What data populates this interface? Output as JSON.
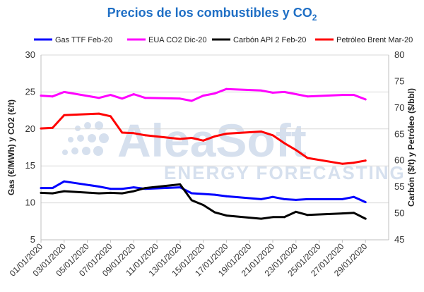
{
  "chart_data": {
    "type": "line",
    "title": "Precios de los combustibles y CO",
    "title_subscript": "2",
    "ylabel_left": "Gas (€/MWh) y CO2 (€/t)",
    "ylabel_right": "Carbón ($/t) y Petróleo ($/bbl)",
    "ylim_left": [
      5,
      30
    ],
    "ylim_right": [
      45,
      80
    ],
    "yticks_left": [
      "5",
      "10",
      "15",
      "20",
      "25",
      "30"
    ],
    "yticks_right": [
      "45",
      "50",
      "55",
      "60",
      "65",
      "70",
      "75",
      "80"
    ],
    "x_tick_labels": [
      "01/01/2020",
      "03/01/2020",
      "05/01/2020",
      "07/01/2020",
      "09/01/2020",
      "11/01/2020",
      "13/01/2020",
      "15/01/2020",
      "17/01/2020",
      "19/01/2020",
      "21/01/2020",
      "23/01/2020",
      "25/01/2020",
      "27/01/2020",
      "29/01/2020"
    ],
    "x": [
      "01/01/2020",
      "02/01/2020",
      "03/01/2020",
      "06/01/2020",
      "07/01/2020",
      "08/01/2020",
      "09/01/2020",
      "10/01/2020",
      "13/01/2020",
      "14/01/2020",
      "15/01/2020",
      "16/01/2020",
      "17/01/2020",
      "20/01/2020",
      "21/01/2020",
      "22/01/2020",
      "23/01/2020",
      "24/01/2020",
      "27/01/2020",
      "28/01/2020",
      "29/01/2020",
      "30/01/2020",
      "31/01/2020"
    ],
    "x_range": [
      "01/01/2020",
      "31/01/2020"
    ],
    "grid": "horizontal",
    "legend_position": "top",
    "series": [
      {
        "name": "Gas TTF Feb-20",
        "axis": "left",
        "color": "#0000ff",
        "values": [
          12.0,
          12.0,
          12.9,
          12.2,
          11.9,
          11.9,
          12.1,
          11.9,
          12.1,
          11.3,
          11.2,
          11.1,
          10.9,
          10.5,
          10.8,
          10.5,
          10.4,
          10.5,
          10.5,
          10.8,
          10.1,
          null,
          null
        ]
      },
      {
        "name": "EUA CO2 Dic-20",
        "axis": "left",
        "color": "#ff00ff",
        "values": [
          24.5,
          24.4,
          25.0,
          24.2,
          24.6,
          24.1,
          24.7,
          24.2,
          24.1,
          23.8,
          24.5,
          24.8,
          25.4,
          25.2,
          24.9,
          25.0,
          24.7,
          24.4,
          24.6,
          24.6,
          24.0,
          null,
          null
        ]
      },
      {
        "name": "Carbón API 2 Feb-20",
        "axis": "right",
        "color": "#000000",
        "values": [
          53.9,
          53.8,
          54.2,
          53.8,
          53.9,
          53.8,
          54.2,
          54.8,
          55.5,
          52.5,
          51.6,
          50.2,
          49.6,
          49.0,
          49.3,
          49.3,
          50.3,
          49.7,
          50.0,
          50.1,
          49.0,
          null,
          null
        ]
      },
      {
        "name": "Petróleo Brent Mar-20",
        "axis": "right",
        "color": "#ff0000",
        "values": [
          66.1,
          66.2,
          68.6,
          68.9,
          68.4,
          65.3,
          65.2,
          64.8,
          64.1,
          64.3,
          63.8,
          64.6,
          65.1,
          65.5,
          64.8,
          63.3,
          62.0,
          60.5,
          59.4,
          59.6,
          60.0,
          null,
          null
        ]
      }
    ]
  },
  "watermark": {
    "brand": "AleaSoft",
    "tagline": "ENERGY FORECASTING"
  }
}
